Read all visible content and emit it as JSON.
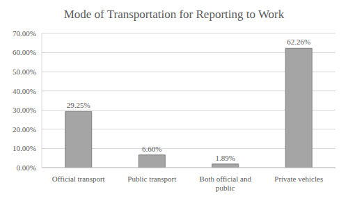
{
  "chart_data": {
    "type": "bar",
    "title": "Mode of Transportation for Reporting to Work",
    "categories": [
      "Official transport",
      "Public transport",
      "Both official and public",
      "Private vehicles"
    ],
    "values": [
      29.25,
      6.6,
      1.89,
      62.26
    ],
    "value_labels": [
      "29.25%",
      "6.60%",
      "1.89%",
      "62.26%"
    ],
    "color": "#a5a5a5",
    "ylim": [
      0,
      70
    ],
    "yticks": [
      {
        "value": 0,
        "label": "0.00%"
      },
      {
        "value": 10,
        "label": "10.00%"
      },
      {
        "value": 20,
        "label": "20.00%"
      },
      {
        "value": 30,
        "label": "30.00%"
      },
      {
        "value": 40,
        "label": "40.00%"
      },
      {
        "value": 50,
        "label": "50.00%"
      },
      {
        "value": 60,
        "label": "60.00%"
      },
      {
        "value": 70,
        "label": "70.00%"
      }
    ],
    "grid": true,
    "data_labels": true
  }
}
